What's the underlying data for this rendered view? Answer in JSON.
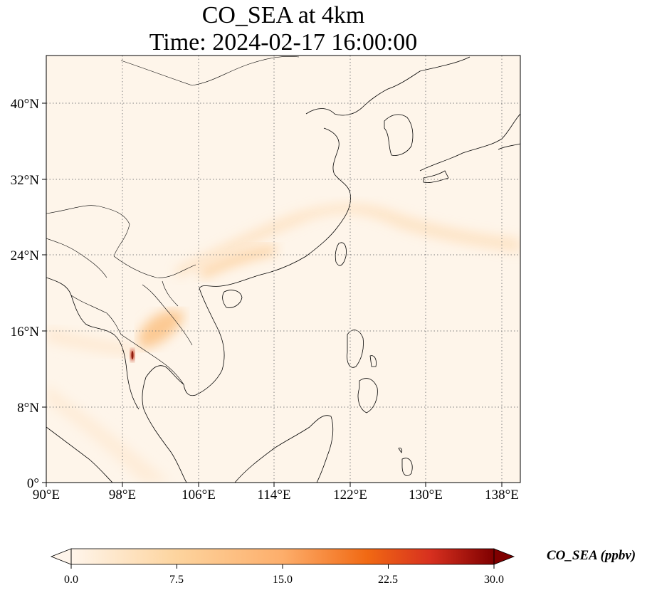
{
  "title": {
    "line1": "CO_SEA at 4km",
    "line2": "Time: 2024-02-17 16:00:00"
  },
  "map": {
    "lon_range": [
      90,
      140
    ],
    "lat_range": [
      0,
      45
    ],
    "lon_ticks": [
      "90°E",
      "98°E",
      "106°E",
      "114°E",
      "122°E",
      "130°E",
      "138°E"
    ],
    "lat_ticks": [
      "0°",
      "8°N",
      "16°N",
      "24°N",
      "32°N",
      "40°N"
    ],
    "gridlines": true
  },
  "colorbar": {
    "label": "CO_SEA (ppbv)",
    "ticks": [
      "0.0",
      "7.5",
      "15.0",
      "22.5",
      "30.0"
    ],
    "range": [
      0,
      30
    ],
    "colors": [
      "#fff5eb",
      "#fdd49e",
      "#fdae6b",
      "#f16913",
      "#d7301f",
      "#7f0000"
    ],
    "extend": "both"
  }
}
